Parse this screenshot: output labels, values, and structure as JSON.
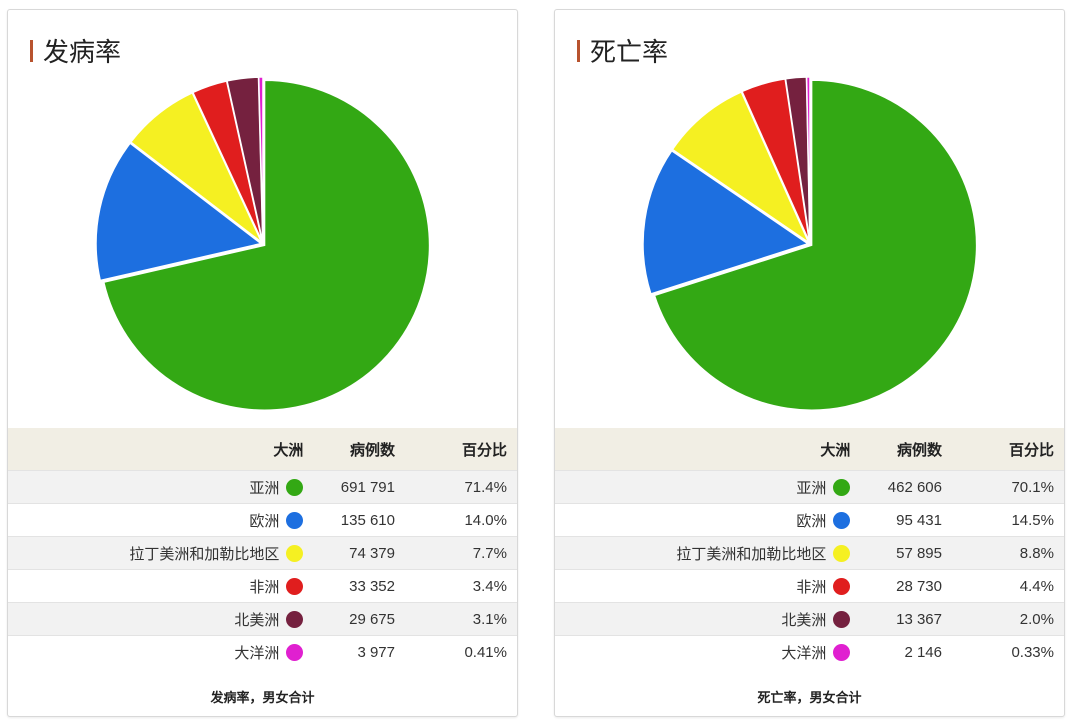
{
  "chart_data": [
    {
      "type": "pie",
      "title": "发病率",
      "footnote": "发病率，男女合计",
      "headers": [
        "大洲",
        "病例数",
        "百分比"
      ],
      "rows": [
        {
          "label": "亚洲",
          "cases": "691 791",
          "value": 691791,
          "percent": "71.4%",
          "color": "#33a814"
        },
        {
          "label": "欧洲",
          "cases": "135 610",
          "value": 135610,
          "percent": "14.0%",
          "color": "#1d6fe0"
        },
        {
          "label": "拉丁美洲和加勒比地区",
          "cases": "74 379",
          "value": 74379,
          "percent": "7.7%",
          "color": "#f5f022"
        },
        {
          "label": "非洲",
          "cases": "33 352",
          "value": 33352,
          "percent": "3.4%",
          "color": "#e01e1e"
        },
        {
          "label": "北美洲",
          "cases": "29 675",
          "value": 29675,
          "percent": "3.1%",
          "color": "#75213f"
        },
        {
          "label": "大洋洲",
          "cases": "3 977",
          "value": 3977,
          "percent": "0.41%",
          "color": "#e020d0"
        }
      ]
    },
    {
      "type": "pie",
      "title": "死亡率",
      "footnote": "死亡率，男女合计",
      "headers": [
        "大洲",
        "病例数",
        "百分比"
      ],
      "rows": [
        {
          "label": "亚洲",
          "cases": "462 606",
          "value": 462606,
          "percent": "70.1%",
          "color": "#33a814"
        },
        {
          "label": "欧洲",
          "cases": "95 431",
          "value": 95431,
          "percent": "14.5%",
          "color": "#1d6fe0"
        },
        {
          "label": "拉丁美洲和加勒比地区",
          "cases": "57 895",
          "value": 57895,
          "percent": "8.8%",
          "color": "#f5f022"
        },
        {
          "label": "非洲",
          "cases": "28 730",
          "value": 28730,
          "percent": "4.4%",
          "color": "#e01e1e"
        },
        {
          "label": "北美洲",
          "cases": "13 367",
          "value": 13367,
          "percent": "2.0%",
          "color": "#75213f"
        },
        {
          "label": "大洋洲",
          "cases": "2 146",
          "value": 2146,
          "percent": "0.33%",
          "color": "#e020d0"
        }
      ]
    }
  ]
}
